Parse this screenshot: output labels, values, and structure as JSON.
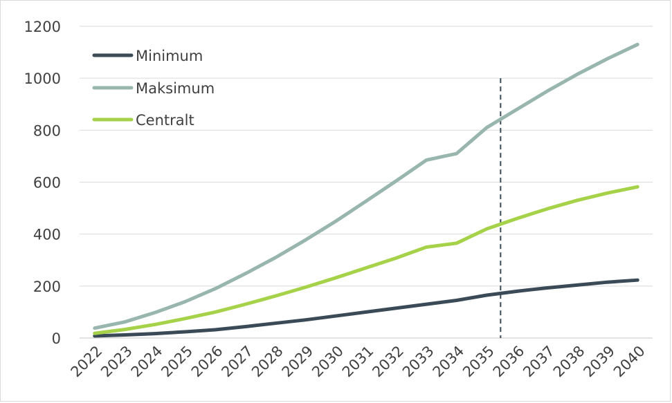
{
  "chart_data": {
    "type": "line",
    "title": "",
    "xlabel": "",
    "ylabel": "",
    "ylim": [
      0,
      1200
    ],
    "yticks": [
      0,
      200,
      400,
      600,
      800,
      1000,
      1200
    ],
    "grid": "horizontal",
    "legend_position": "top-left",
    "categories": [
      "2022",
      "2023",
      "2024",
      "2025",
      "2026",
      "2027",
      "2028",
      "2029",
      "2030",
      "2031",
      "2032",
      "2033",
      "2034",
      "2035",
      "2036",
      "2037",
      "2038",
      "2039",
      "2040"
    ],
    "series": [
      {
        "name": "Minimum",
        "color": "#3a4a57",
        "values": [
          8,
          12,
          17,
          24,
          32,
          44,
          57,
          70,
          85,
          100,
          115,
          130,
          145,
          165,
          180,
          193,
          204,
          215,
          223
        ]
      },
      {
        "name": "Maksimum",
        "color": "#98b5ae",
        "values": [
          38,
          62,
          98,
          140,
          190,
          248,
          310,
          378,
          450,
          527,
          605,
          685,
          710,
          810,
          880,
          950,
          1015,
          1075,
          1130
        ]
      },
      {
        "name": "Centralt",
        "color": "#a6d24a",
        "values": [
          18,
          33,
          52,
          75,
          100,
          130,
          162,
          196,
          232,
          270,
          308,
          350,
          365,
          420,
          460,
          497,
          530,
          558,
          582
        ]
      }
    ],
    "reference_line": {
      "x": "2035",
      "style": "dashed",
      "color": "#3a4a57"
    }
  }
}
